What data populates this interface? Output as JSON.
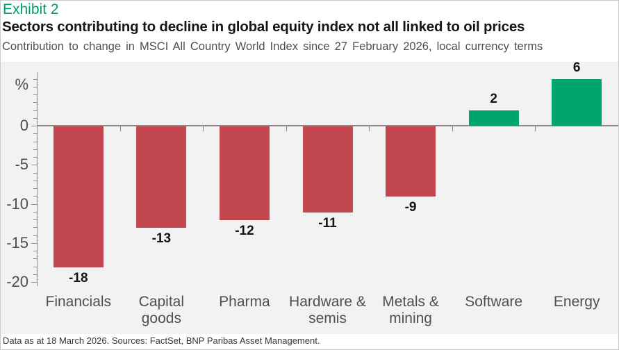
{
  "header": {
    "exhibit": "Exhibit 2",
    "title": "Sectors contributing to decline in global equity index not all linked to oil prices",
    "subtitle": "Contribution to change in MSCI All Country World Index since 27 February 2026, local currency terms"
  },
  "footer": {
    "text": "Data as at 18 March 2026.  Sources: FactSet, BNP Paribas Asset Management."
  },
  "colors": {
    "negative_bar": "#C3474F",
    "positive_bar": "#00A56D",
    "exhibit_green": "#009E60",
    "plot_background": "#F2F2F2",
    "axis": "#8C8C8C",
    "tick_label": "#4d4d4d"
  },
  "chart_data": {
    "type": "bar",
    "title": "Sectors contributing to decline in global equity index not all linked to oil prices",
    "subtitle": "Contribution to change in MSCI All Country World Index since 27 February 2026, local currency terms",
    "unit": "%",
    "categories": [
      "Financials",
      "Capital goods",
      "Pharma",
      "Hardware & semis",
      "Metals & mining",
      "Software",
      "Energy"
    ],
    "values": [
      -18,
      -13,
      -12,
      -11,
      -9,
      2,
      6
    ],
    "data_labels": [
      "-18",
      "-13",
      "-12",
      "-11",
      "-9",
      "2",
      "6"
    ],
    "y_ticks": [
      0,
      -5,
      -10,
      -15,
      -20
    ],
    "minor_tick_step": 1,
    "ylim": [
      -20.5,
      6.8
    ],
    "grid": false,
    "legend": false,
    "color_rule": "negative values red, positive values green"
  }
}
